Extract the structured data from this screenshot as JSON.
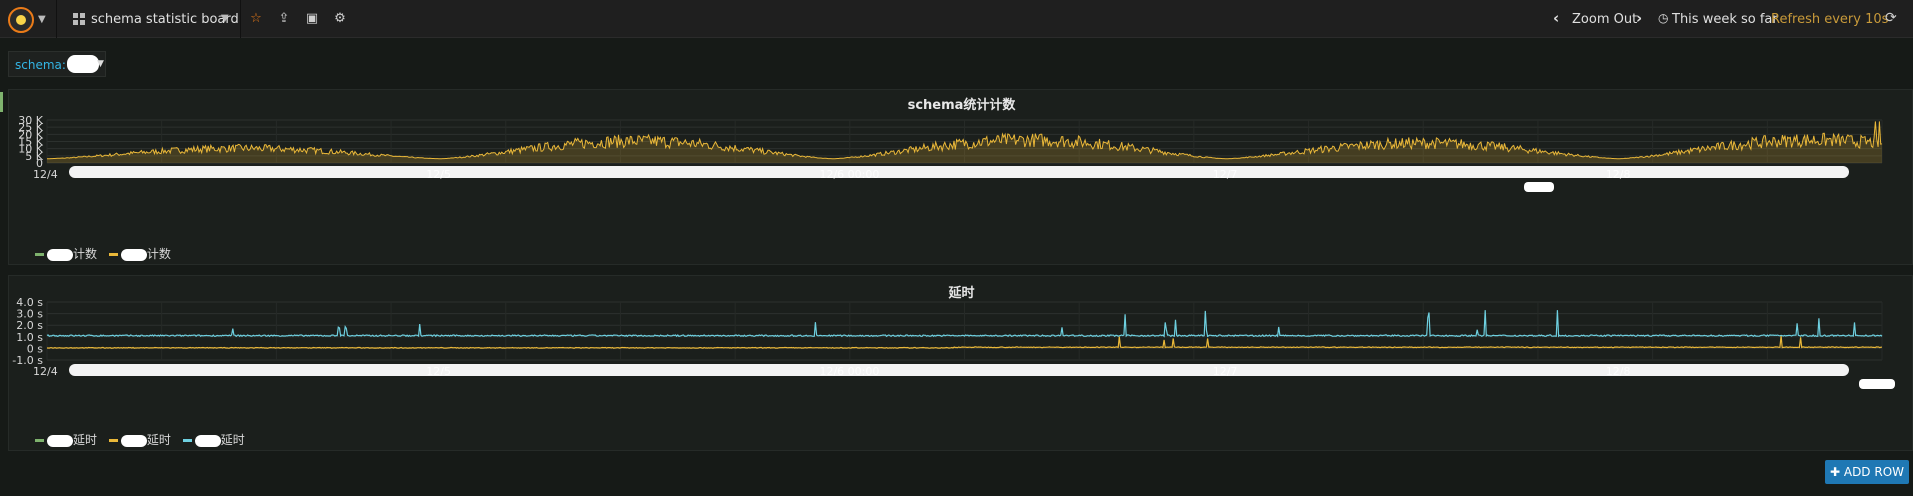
{
  "navbar": {
    "dashboard_title": "schema statistic board",
    "zoom_out_label": "Zoom Out",
    "time_range_label": "This week so far",
    "refresh_label": "Refresh every 10s",
    "icons": [
      "grafana-logo-icon",
      "dashboard-grid-icon",
      "star-icon",
      "share-icon",
      "save-icon",
      "settings-gear-icon",
      "chevron-left-icon",
      "chevron-right-icon",
      "clock-icon",
      "refresh-icon"
    ]
  },
  "variables": {
    "schema_label": "schema:"
  },
  "panels": [
    {
      "title": "schema统计计数",
      "legend": [
        {
          "label": "计数",
          "color": "#7eb26d"
        },
        {
          "label": "计数",
          "color": "#eab839"
        }
      ]
    },
    {
      "title": "延时",
      "legend": [
        {
          "label": "延时",
          "color": "#7eb26d"
        },
        {
          "label": "延时",
          "color": "#eab839"
        },
        {
          "label": "延时",
          "color": "#6ed0e0"
        }
      ]
    }
  ],
  "add_row_label": "ADD ROW",
  "chart_data": [
    {
      "type": "area",
      "title": "schema统计计数",
      "y_ticks": [
        "30 K",
        "25 K",
        "20 K",
        "15 K",
        "10 K",
        "5 K",
        "0"
      ],
      "ylim": [
        0,
        30000
      ],
      "x_tick_labels": [
        "12/4",
        "12/5",
        "12/6 00:00",
        "12/7",
        "12/8"
      ],
      "grid": true,
      "legend_placement": "bottom-left",
      "series": [
        {
          "color": "#eab839",
          "baseline": 5000,
          "daily_peaks": [
            13000,
            20000,
            21000,
            18000,
            21000
          ],
          "max": 29000
        }
      ]
    },
    {
      "type": "line",
      "title": "延时",
      "y_ticks": [
        "4.0 s",
        "3.0 s",
        "2.0 s",
        "1.0 s",
        "0 s",
        "-1.0 s"
      ],
      "ylim": [
        -1.0,
        4.0
      ],
      "x_tick_labels": [
        "12/4",
        "12/5",
        "12/6 00:00",
        "12/7",
        "12/8"
      ],
      "grid": true,
      "legend_placement": "bottom-left",
      "series": [
        {
          "color": "#6ed0e0",
          "level": 1.1,
          "spike_max": 3.3
        },
        {
          "color": "#eab839",
          "level": 0.05,
          "spike_max": 1.1
        }
      ]
    }
  ],
  "colors": {
    "accent_orange": "#eb7b18",
    "link_blue": "#33b5e5",
    "refresh_gold": "#c89a3a",
    "button_blue": "#1f78b4"
  }
}
